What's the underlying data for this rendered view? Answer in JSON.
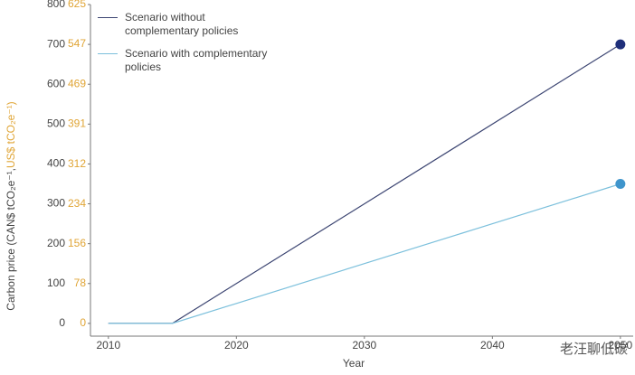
{
  "chart_data": {
    "type": "line",
    "x_label": "Year",
    "y_label": "Carbon price (CAN$ tCO₂e⁻¹, ",
    "y2_label": "US$ tCO₂e⁻¹)",
    "x": [
      2010,
      2015,
      2050
    ],
    "series": [
      {
        "name": "Scenario without complementary policies",
        "color": "#3c4572",
        "values": [
          0,
          0,
          700
        ],
        "marker_color": "#1f2f7a"
      },
      {
        "name": "Scenario with complementary policies",
        "color": "#7cc0dc",
        "values": [
          0,
          0,
          350
        ],
        "marker_color": "#3f95cc"
      }
    ],
    "xlim": [
      2008.6,
      2051
    ],
    "xticks": [
      2010,
      2020,
      2030,
      2040,
      2050
    ],
    "ylim": [
      -32,
      800
    ],
    "yticks": [
      0,
      100,
      200,
      300,
      400,
      500,
      600,
      700,
      800
    ],
    "y2lim": [
      -25,
      625
    ],
    "y2ticks": [
      0,
      78,
      156,
      234,
      312,
      391,
      469,
      547,
      625
    ],
    "y2_color": "#e0a536",
    "legend": "upper left",
    "watermark": "老汪聊低碳"
  }
}
